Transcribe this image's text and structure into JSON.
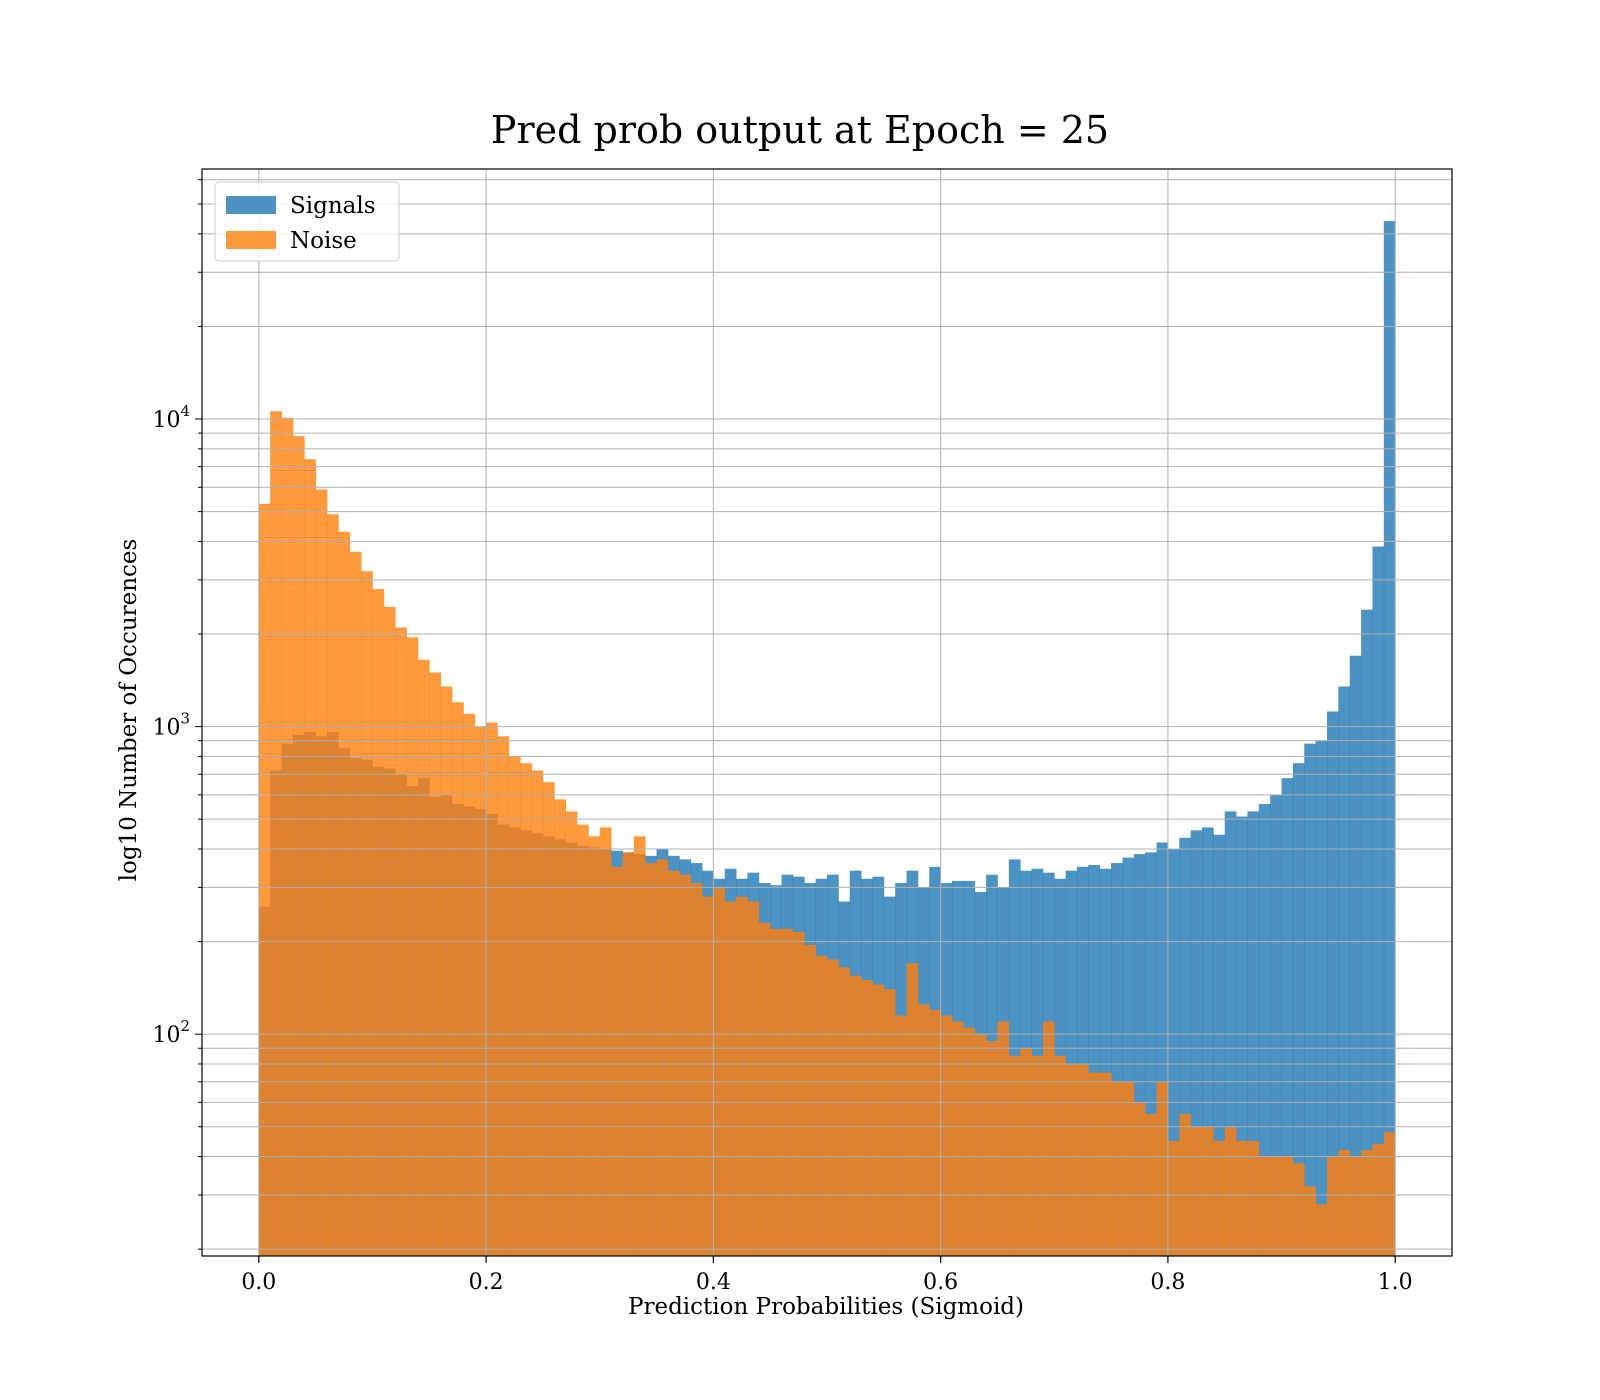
{
  "chart_data": {
    "type": "bar",
    "title": "Pred prob output at Epoch = 25",
    "xlabel": "Prediction Probabilities (Sigmoid)",
    "ylabel": "log10 Number of Occurences",
    "yscale": "log",
    "xlim": [
      -0.05,
      1.05
    ],
    "ylim": [
      19,
      65000
    ],
    "grid": true,
    "legend_position": "top-left",
    "x_ticks": [
      "0.0",
      "0.2",
      "0.4",
      "0.6",
      "0.8",
      "1.0"
    ],
    "y_ticks": [
      {
        "base": "10",
        "exp": "2"
      },
      {
        "base": "10",
        "exp": "3"
      },
      {
        "base": "10",
        "exp": "4"
      }
    ],
    "bins": {
      "start": 0.0,
      "end": 1.0,
      "count": 100
    },
    "series": [
      {
        "name": "Signals",
        "color": "#1f77b4",
        "values": [
          260,
          720,
          880,
          940,
          960,
          930,
          960,
          850,
          790,
          780,
          740,
          730,
          700,
          640,
          680,
          590,
          600,
          560,
          550,
          540,
          520,
          480,
          470,
          460,
          450,
          440,
          430,
          420,
          410,
          405,
          400,
          395,
          390,
          385,
          380,
          400,
          380,
          370,
          360,
          340,
          320,
          345,
          320,
          335,
          310,
          305,
          330,
          325,
          310,
          320,
          330,
          270,
          340,
          320,
          325,
          280,
          310,
          340,
          300,
          350,
          310,
          315,
          315,
          290,
          330,
          300,
          370,
          340,
          345,
          335,
          320,
          340,
          350,
          355,
          345,
          360,
          375,
          385,
          390,
          420,
          400,
          435,
          460,
          470,
          445,
          530,
          510,
          530,
          560,
          600,
          680,
          760,
          880,
          900,
          1120,
          1350,
          1700,
          2400,
          3850,
          44000
        ]
      },
      {
        "name": "Noise",
        "color": "#ff7f0e",
        "values": [
          5300,
          10600,
          10100,
          8800,
          7400,
          5900,
          4900,
          4300,
          3700,
          3200,
          2800,
          2450,
          2100,
          1950,
          1650,
          1500,
          1350,
          1200,
          1100,
          1000,
          1030,
          930,
          800,
          760,
          720,
          660,
          580,
          530,
          480,
          440,
          470,
          350,
          390,
          440,
          360,
          370,
          340,
          330,
          310,
          280,
          300,
          270,
          280,
          270,
          230,
          220,
          220,
          215,
          195,
          180,
          175,
          165,
          155,
          150,
          145,
          140,
          115,
          170,
          125,
          120,
          115,
          110,
          105,
          100,
          95,
          110,
          85,
          90,
          85,
          110,
          85,
          80,
          80,
          75,
          75,
          70,
          70,
          60,
          55,
          70,
          45,
          55,
          50,
          50,
          45,
          50,
          45,
          45,
          40,
          40,
          40,
          38,
          32,
          28,
          40,
          42,
          40,
          42,
          44,
          48
        ]
      }
    ]
  }
}
